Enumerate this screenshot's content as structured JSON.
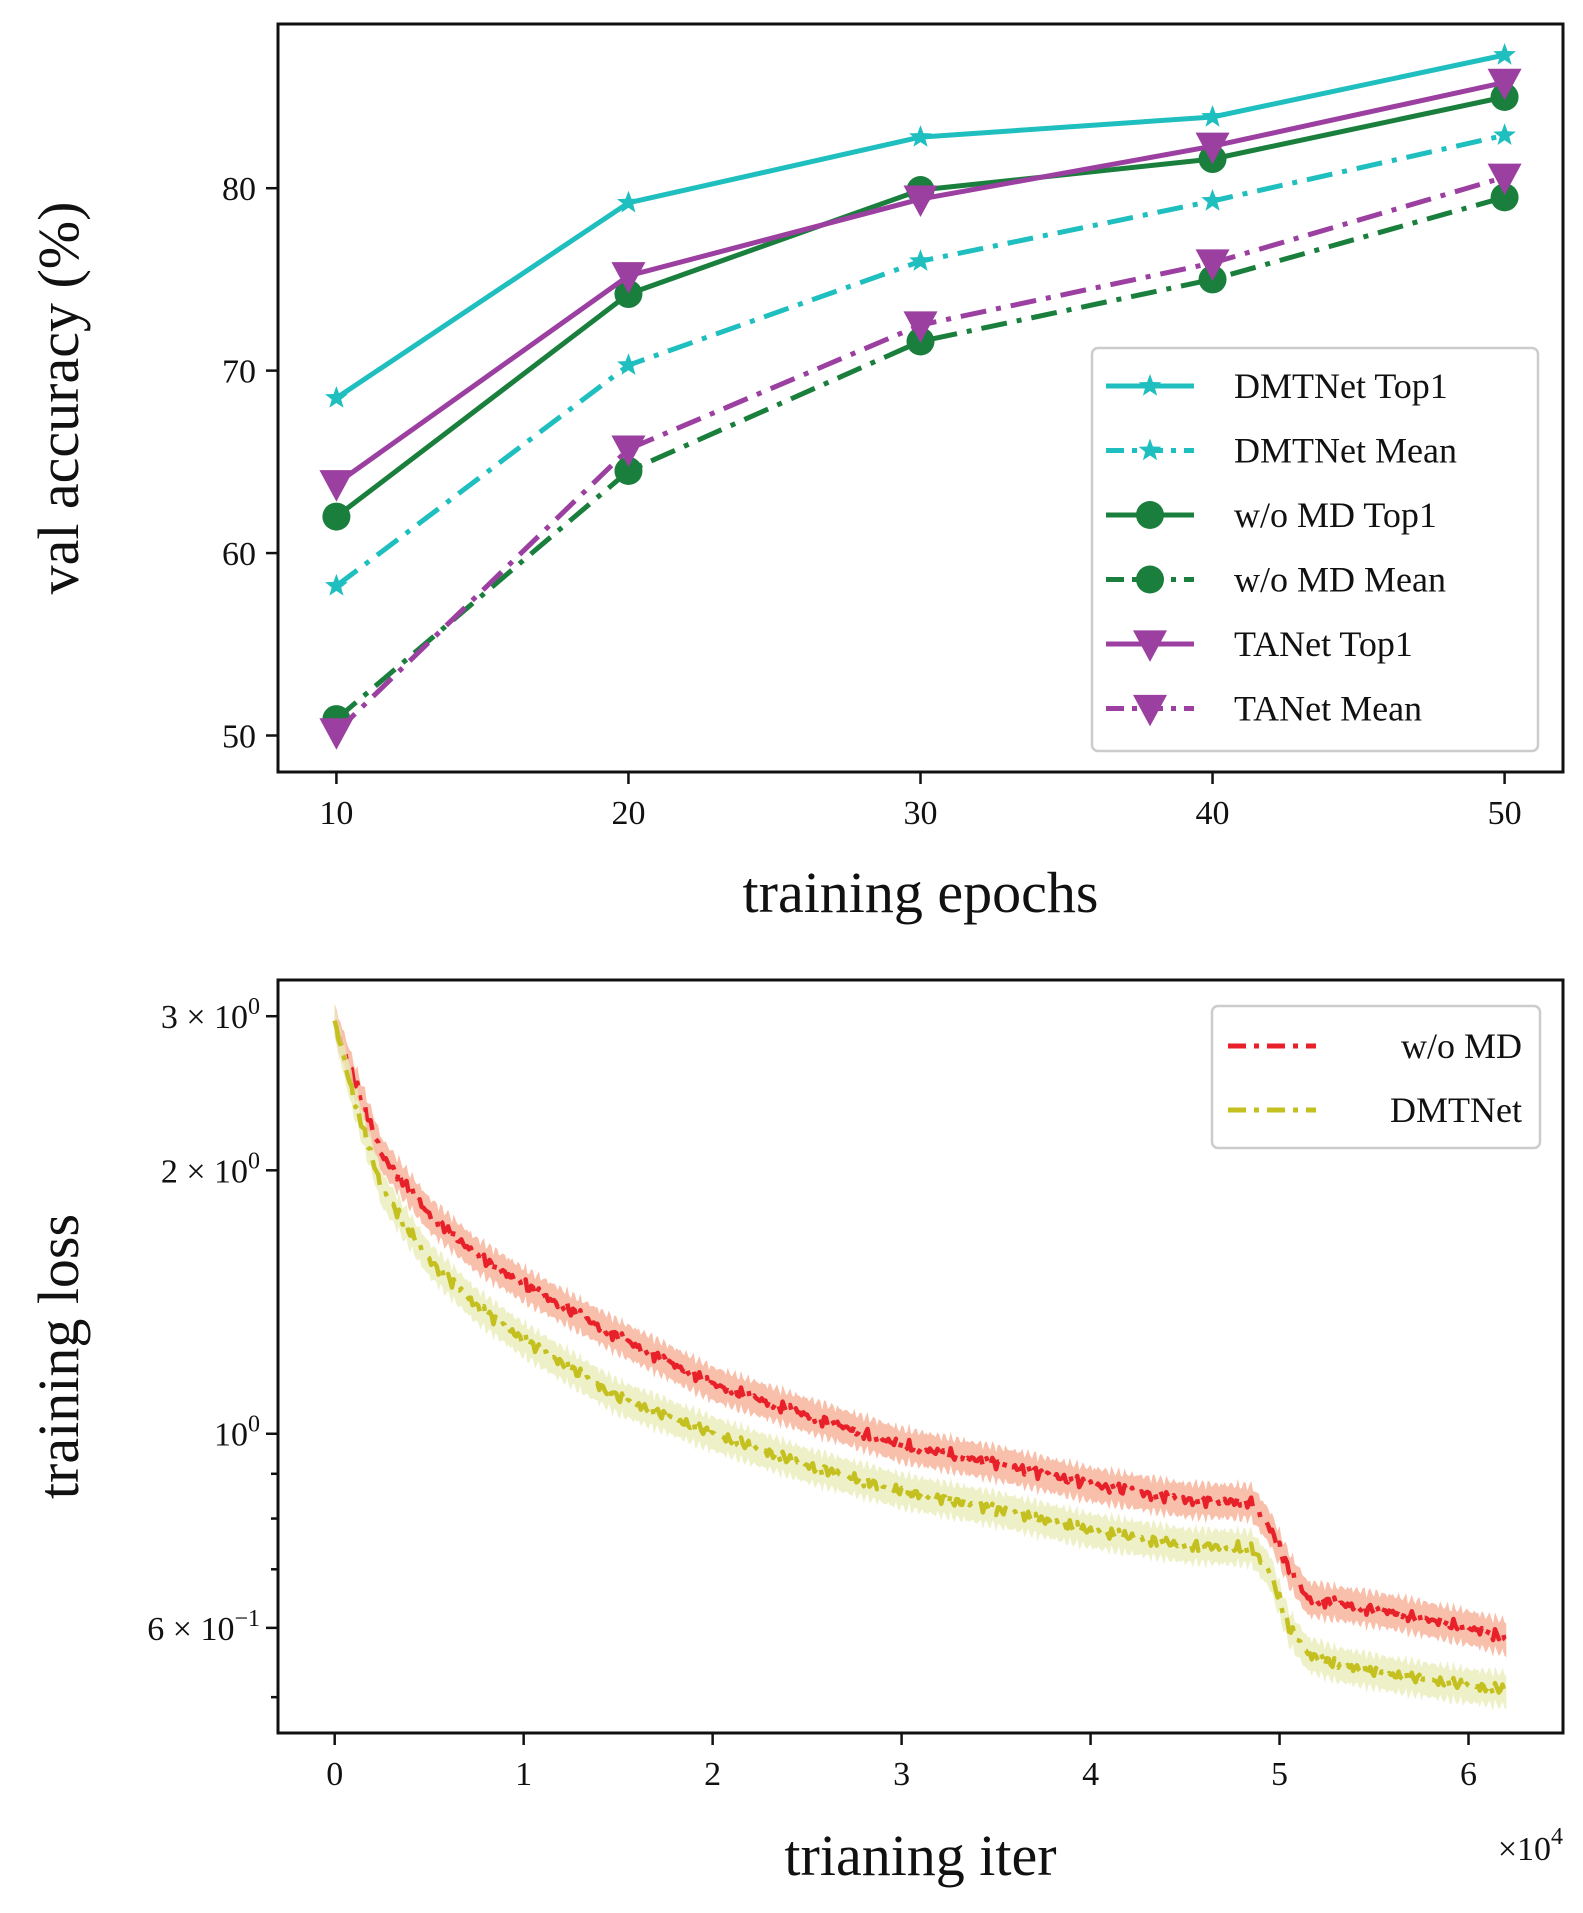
{
  "chart_data": [
    {
      "type": "line",
      "title": "",
      "xlabel": "training epochs",
      "ylabel": "val accuracy (%)",
      "x": [
        10,
        20,
        30,
        40,
        50
      ],
      "xlim": [
        8,
        52
      ],
      "ylim": [
        48,
        89
      ],
      "xticks": [
        "10",
        "20",
        "30",
        "40",
        "50"
      ],
      "yticks": [
        "50",
        "60",
        "70",
        "80"
      ],
      "legend_position": "lower-right",
      "series": [
        {
          "name": "DMTNet Top1",
          "color": "#1fbfbf",
          "dash": "solid",
          "marker": "star",
          "values": [
            68.5,
            79.2,
            82.8,
            83.9,
            87.3
          ]
        },
        {
          "name": "DMTNet Mean",
          "color": "#1fbfbf",
          "dash": "dashdot",
          "marker": "star",
          "values": [
            58.2,
            70.3,
            76.0,
            79.3,
            82.9
          ]
        },
        {
          "name": "w/o MD Top1",
          "color": "#1a7f3c",
          "dash": "solid",
          "marker": "circle",
          "values": [
            62.0,
            74.2,
            79.9,
            81.6,
            85.0
          ]
        },
        {
          "name": "w/o MD Mean",
          "color": "#1a7f3c",
          "dash": "dashdot",
          "marker": "circle",
          "values": [
            50.9,
            64.5,
            71.6,
            75.0,
            79.5
          ]
        },
        {
          "name": "TANet Top1",
          "color": "#9b3fa0",
          "dash": "solid",
          "marker": "triangle-down",
          "values": [
            63.8,
            75.2,
            79.4,
            82.3,
            85.8
          ]
        },
        {
          "name": "TANet Mean",
          "color": "#9b3fa0",
          "dash": "dashdot",
          "marker": "triangle-down",
          "values": [
            50.2,
            65.7,
            72.5,
            75.9,
            80.6
          ]
        }
      ]
    },
    {
      "type": "line",
      "title": "",
      "xlabel": "trianing iter",
      "ylabel": "training loss",
      "yscale": "log",
      "x_multiplier_label": "×10",
      "x_multiplier_exp": "4",
      "xlim": [
        -0.3,
        6.5
      ],
      "ylim": [
        0.455,
        3.3
      ],
      "xticks": [
        "0",
        "1",
        "2",
        "3",
        "4",
        "5",
        "6"
      ],
      "yticks": [
        {
          "value": 3,
          "label": "3 × 10",
          "exp": "0"
        },
        {
          "value": 2,
          "label": "2 × 10",
          "exp": "0"
        },
        {
          "value": 1,
          "label": "10",
          "exp": "0"
        },
        {
          "value": 0.6,
          "label": "6 × 10",
          "exp": "−1"
        }
      ],
      "legend_position": "upper-right",
      "series": [
        {
          "name": "w/o MD",
          "color": "#e8202a",
          "band_color": "#f6a98e",
          "dash": "dashdot",
          "x": [
            0,
            0.1,
            0.25,
            0.5,
            0.75,
            1.0,
            1.5,
            2.0,
            2.5,
            3.0,
            3.5,
            4.0,
            4.5,
            4.85,
            4.95,
            5.05,
            5.15,
            5.3,
            5.6,
            6.0,
            6.2
          ],
          "values": [
            2.95,
            2.55,
            2.08,
            1.78,
            1.6,
            1.48,
            1.29,
            1.14,
            1.05,
            0.97,
            0.925,
            0.875,
            0.84,
            0.835,
            0.78,
            0.7,
            0.648,
            0.64,
            0.625,
            0.6,
            0.585
          ]
        },
        {
          "name": "DMTNet",
          "color": "#c4c020",
          "band_color": "#e8ecb5",
          "dash": "dashdot",
          "x": [
            0,
            0.1,
            0.25,
            0.5,
            0.75,
            1.0,
            1.5,
            2.0,
            2.5,
            3.0,
            3.5,
            4.0,
            4.5,
            4.85,
            4.95,
            5.05,
            5.15,
            5.3,
            5.6,
            6.0,
            6.2
          ],
          "values": [
            2.95,
            2.42,
            1.9,
            1.58,
            1.4,
            1.28,
            1.1,
            1.0,
            0.92,
            0.86,
            0.82,
            0.775,
            0.745,
            0.74,
            0.695,
            0.6,
            0.56,
            0.545,
            0.53,
            0.515,
            0.51
          ]
        }
      ]
    }
  ]
}
